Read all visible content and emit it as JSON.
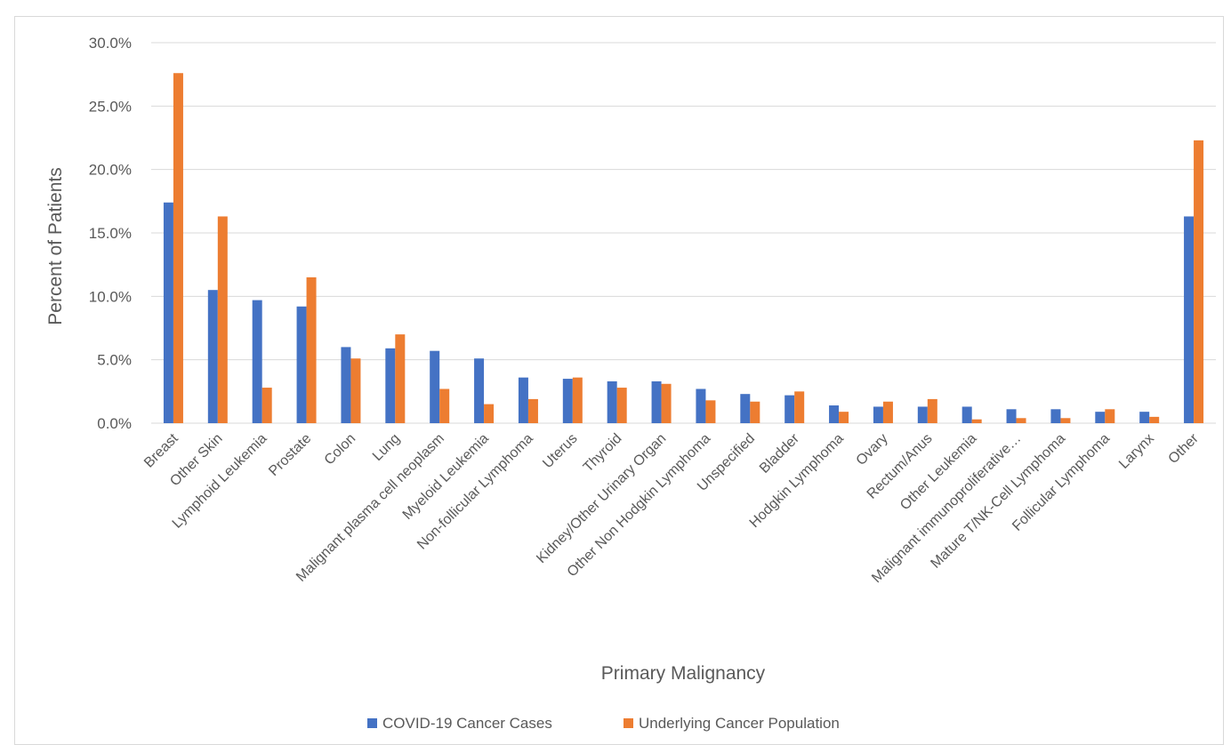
{
  "chart_data": {
    "type": "bar",
    "title": "",
    "xlabel": "Primary Malignancy",
    "ylabel": "Percent of Patients",
    "ylim": [
      0,
      30
    ],
    "yticks": [
      "0.0%",
      "5.0%",
      "10.0%",
      "15.0%",
      "20.0%",
      "25.0%",
      "30.0%"
    ],
    "grid": true,
    "legend_position": "bottom",
    "categories": [
      "Breast",
      "Other Skin",
      "Lymphoid Leukemia",
      "Prostate",
      "Colon",
      "Lung",
      "Malignant plasma cell neoplasm",
      "Myeloid Leukemia",
      "Non-follicular Lymphoma",
      "Uterus",
      "Thyroid",
      "Kidney/Other Urinary Organ",
      "Other Non Hodgkin Lymphoma",
      "Unspecified",
      "Bladder",
      "Hodgkin Lymphoma",
      "Ovary",
      "Rectum/Anus",
      "Other Leukemia",
      "Malignant immunoproliferative…",
      "Mature T/NK-Cell Lymphoma",
      "Follicular Lymphoma",
      "Larynx",
      "Other"
    ],
    "series": [
      {
        "name": "COVID-19 Cancer Cases",
        "color": "#4472C4",
        "values": [
          17.4,
          10.5,
          9.7,
          9.2,
          6.0,
          5.9,
          5.7,
          5.1,
          3.6,
          3.5,
          3.3,
          3.3,
          2.7,
          2.3,
          2.2,
          1.4,
          1.3,
          1.3,
          1.3,
          1.1,
          1.1,
          0.9,
          0.9,
          16.3
        ]
      },
      {
        "name": "Underlying Cancer Population",
        "color": "#ED7D31",
        "values": [
          27.6,
          16.3,
          2.8,
          11.5,
          5.1,
          7.0,
          2.7,
          1.5,
          1.9,
          3.6,
          2.8,
          3.1,
          1.8,
          1.7,
          2.5,
          0.9,
          1.7,
          1.9,
          0.3,
          0.4,
          0.4,
          1.1,
          0.5,
          22.3
        ]
      }
    ]
  }
}
